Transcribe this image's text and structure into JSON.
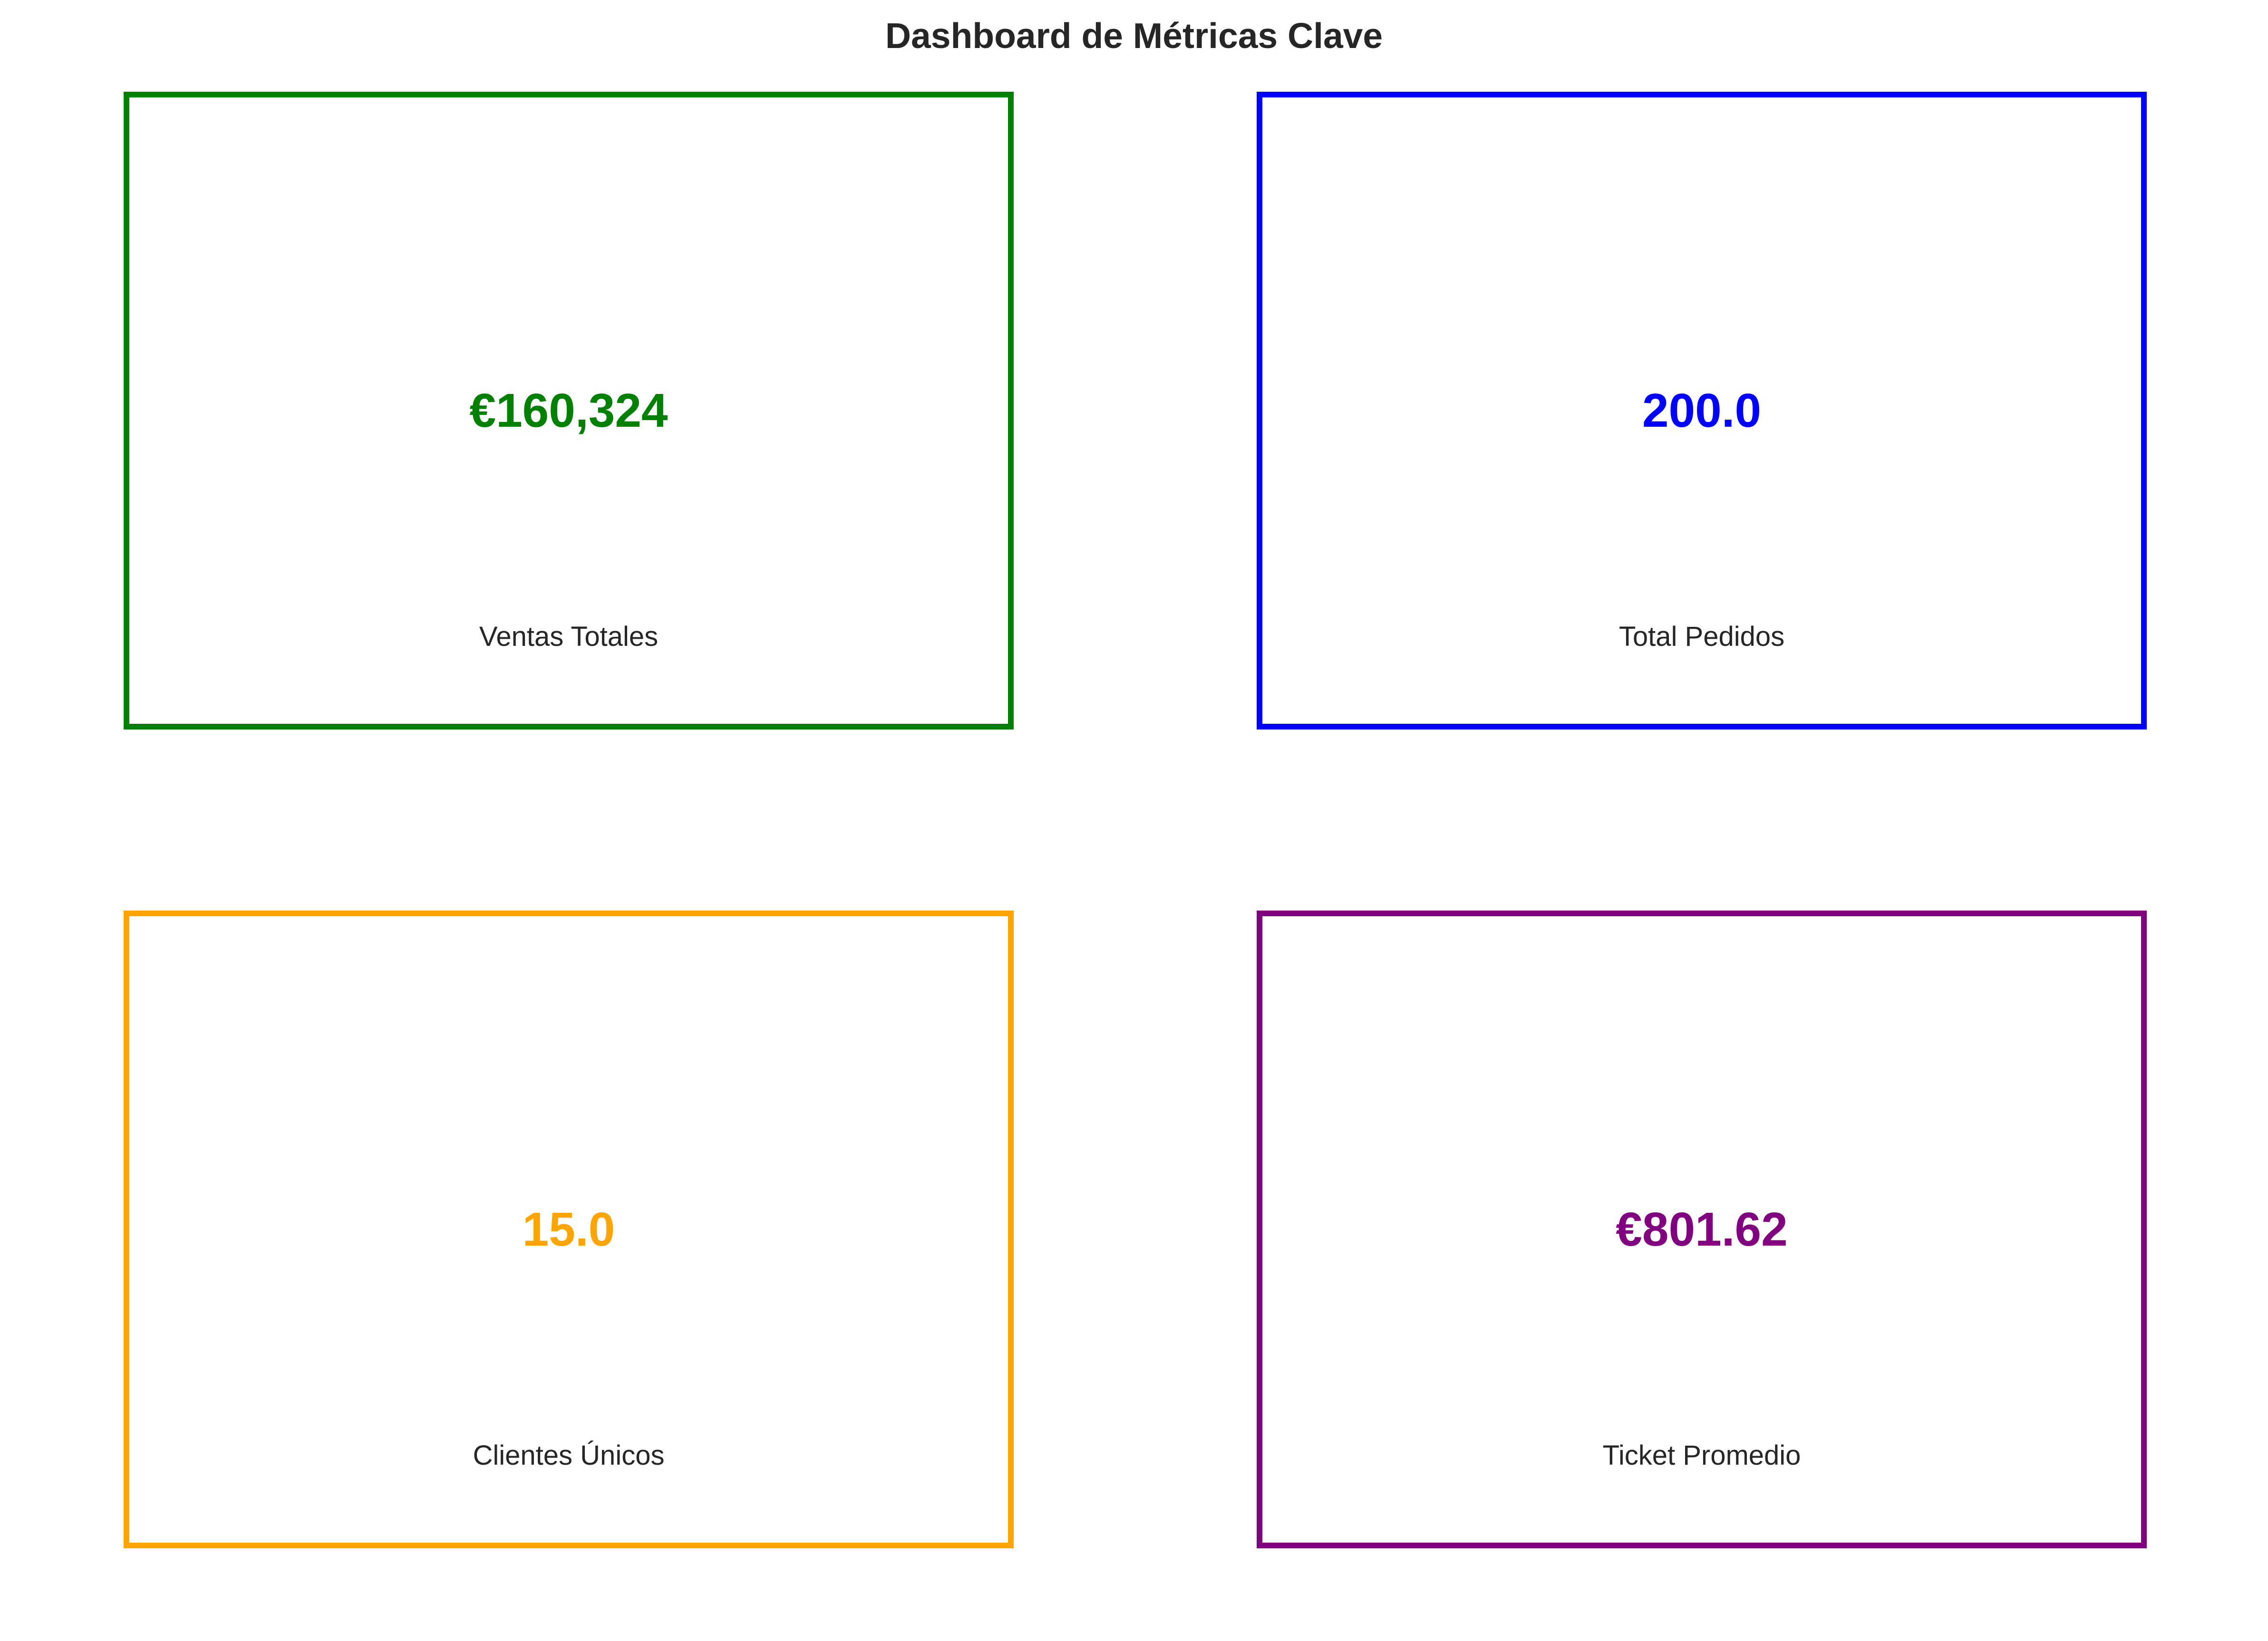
{
  "chart_data": {
    "type": "table",
    "title": "Dashboard de Métricas Clave",
    "kpis": [
      {
        "value": "€160,324",
        "label": "Ventas Totales",
        "color": "#008000"
      },
      {
        "value": "200.0",
        "label": "Total Pedidos",
        "color": "#0000ff"
      },
      {
        "value": "15.0",
        "label": "Clientes Únicos",
        "color": "#ffa500"
      },
      {
        "value": "€801.62",
        "label": "Ticket Promedio",
        "color": "#800080"
      }
    ]
  }
}
